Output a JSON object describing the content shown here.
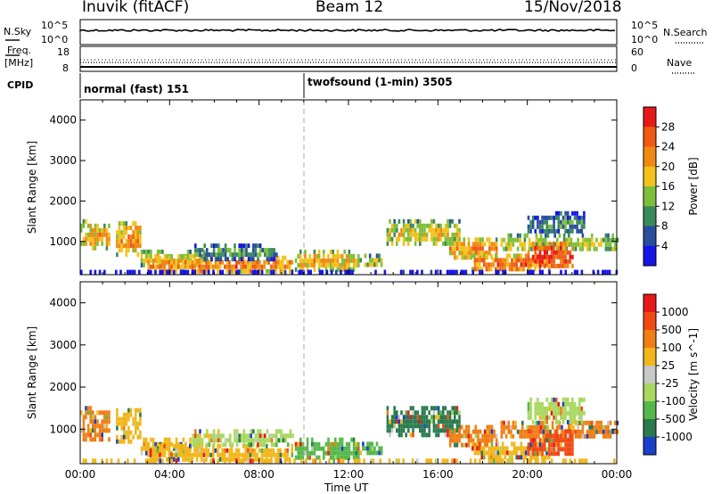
{
  "header": {
    "station": "Inuvik (fitACF)",
    "beam": "Beam 12",
    "date": "15/Nov/2018"
  },
  "noise_panel": {
    "left_label": "N.Sky",
    "right_label": "N.Search",
    "left_ticks": [
      "10^5",
      "10^0"
    ],
    "right_ticks": [
      "10^5",
      "10^0"
    ]
  },
  "freq_panel": {
    "left_label_line1": "Freq.",
    "left_label_line2": "[MHz]",
    "right_label": "Nave",
    "left_ticks": [
      "18",
      "8"
    ],
    "right_ticks": [
      "60",
      "0"
    ]
  },
  "cpid_panel": {
    "label": "CPID",
    "modes": [
      {
        "name": "normal (fast) 151"
      },
      {
        "name": "twofsound (1-min) 3505"
      }
    ]
  },
  "x_axis": {
    "label": "Time UT",
    "ticks": [
      "00:00",
      "04:00",
      "08:00",
      "12:00",
      "16:00",
      "20:00",
      "00:00"
    ]
  },
  "chart_data": [
    {
      "type": "heatmap",
      "title": "",
      "xlabel": "Time UT",
      "ylabel": "Slant Range [km]",
      "xlim": [
        0,
        24
      ],
      "ylim": [
        180,
        4500
      ],
      "yticks": [
        1000,
        2000,
        3000,
        4000
      ],
      "colorbar": {
        "label": "Power [dB]",
        "ticks": [
          "28",
          "24",
          "20",
          "16",
          "12",
          "8",
          "4"
        ],
        "levels": [
          0,
          4,
          8,
          12,
          16,
          20,
          24,
          28,
          32
        ],
        "colors": [
          "#1515e8",
          "#2a4e9e",
          "#3b8a5a",
          "#7dbf3a",
          "#f2c21a",
          "#f08a14",
          "#f05a14",
          "#e81818"
        ]
      },
      "echo_regions": [
        {
          "t": [
            0.0,
            1.3
          ],
          "r": [
            800,
            1550
          ],
          "level": 20
        },
        {
          "t": [
            1.6,
            2.7
          ],
          "r": [
            700,
            1500
          ],
          "level": 22
        },
        {
          "t": [
            2.7,
            5.5
          ],
          "r": [
            450,
            800
          ],
          "level": 18
        },
        {
          "t": [
            3.0,
            9.5
          ],
          "r": [
            280,
            650
          ],
          "level": 24
        },
        {
          "t": [
            5.0,
            8.8
          ],
          "r": [
            600,
            950
          ],
          "level": 12
        },
        {
          "t": [
            9.6,
            12.5
          ],
          "r": [
            300,
            800
          ],
          "level": 20
        },
        {
          "t": [
            12.5,
            13.5
          ],
          "r": [
            400,
            700
          ],
          "level": 16
        },
        {
          "t": [
            13.7,
            17.0
          ],
          "r": [
            900,
            1550
          ],
          "level": 18
        },
        {
          "t": [
            16.5,
            18.6
          ],
          "r": [
            600,
            1100
          ],
          "level": 22
        },
        {
          "t": [
            17.5,
            21.0
          ],
          "r": [
            300,
            700
          ],
          "level": 24
        },
        {
          "t": [
            18.8,
            24.0
          ],
          "r": [
            800,
            1200
          ],
          "level": 16
        },
        {
          "t": [
            20.0,
            22.0
          ],
          "r": [
            400,
            1000
          ],
          "level": 28
        },
        {
          "t": [
            20.0,
            22.5
          ],
          "r": [
            1200,
            1750
          ],
          "level": 10
        },
        {
          "t": [
            0.0,
            24.0
          ],
          "r": [
            200,
            300
          ],
          "level": 6
        }
      ]
    },
    {
      "type": "heatmap",
      "title": "",
      "xlabel": "Time UT",
      "ylabel": "Slant Range [km]",
      "xlim": [
        0,
        24
      ],
      "ylim": [
        180,
        4500
      ],
      "yticks": [
        1000,
        2000,
        3000,
        4000
      ],
      "colorbar": {
        "label": "Velocity [m s^-1]",
        "ticks": [
          "1000",
          "500",
          "100",
          "25",
          "-25",
          "-100",
          "-500",
          "-1000"
        ],
        "colors": [
          "#1a3fc8",
          "#2a7a4e",
          "#55b84a",
          "#a8d860",
          "#c8c8c8",
          "#f2b61a",
          "#f07e14",
          "#f04a14",
          "#e81818"
        ]
      },
      "echo_regions": [
        {
          "t": [
            0.0,
            1.3
          ],
          "r": [
            800,
            1550
          ],
          "class": "-500"
        },
        {
          "t": [
            1.6,
            2.7
          ],
          "r": [
            700,
            1500
          ],
          "class": "-100"
        },
        {
          "t": [
            2.7,
            5.5
          ],
          "r": [
            450,
            800
          ],
          "class": "-100"
        },
        {
          "t": [
            3.0,
            9.5
          ],
          "r": [
            280,
            650
          ],
          "class": "-100"
        },
        {
          "t": [
            5.0,
            9.5
          ],
          "r": [
            650,
            1000
          ],
          "class": "25"
        },
        {
          "t": [
            9.6,
            12.5
          ],
          "r": [
            300,
            800
          ],
          "class": "100"
        },
        {
          "t": [
            12.5,
            13.5
          ],
          "r": [
            400,
            700
          ],
          "class": "100"
        },
        {
          "t": [
            13.7,
            17.0
          ],
          "r": [
            900,
            1550
          ],
          "class": "500"
        },
        {
          "t": [
            16.5,
            18.6
          ],
          "r": [
            600,
            1100
          ],
          "class": "-500"
        },
        {
          "t": [
            17.5,
            21.0
          ],
          "r": [
            300,
            700
          ],
          "class": "-100"
        },
        {
          "t": [
            18.8,
            24.0
          ],
          "r": [
            800,
            1200
          ],
          "class": "-500"
        },
        {
          "t": [
            20.0,
            22.0
          ],
          "r": [
            400,
            1000
          ],
          "class": "-1000"
        },
        {
          "t": [
            20.0,
            22.5
          ],
          "r": [
            1200,
            1750
          ],
          "class": "25"
        },
        {
          "t": [
            0.0,
            24.0
          ],
          "r": [
            200,
            300
          ],
          "class": "-100"
        }
      ]
    }
  ]
}
